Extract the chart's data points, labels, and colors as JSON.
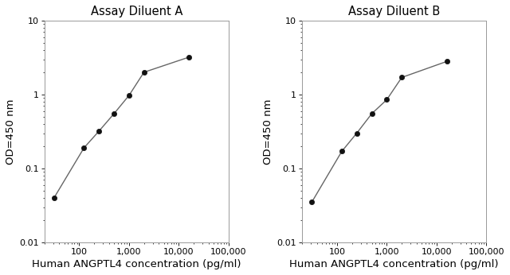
{
  "panel_A": {
    "title": "Assay Diluent A",
    "x": [
      31.25,
      125,
      250,
      500,
      1000,
      2000,
      16000
    ],
    "y": [
      0.04,
      0.19,
      0.32,
      0.55,
      0.97,
      2.0,
      3.2
    ]
  },
  "panel_B": {
    "title": "Assay Diluent B",
    "x": [
      31.25,
      125,
      250,
      500,
      1000,
      2000,
      16000
    ],
    "y": [
      0.035,
      0.17,
      0.3,
      0.55,
      0.85,
      1.7,
      2.8
    ]
  },
  "xlabel": "Human ANGPTL4 concentration (pg/ml)",
  "ylabel": "OD=450 nm",
  "xlim": [
    20,
    100000
  ],
  "ylim": [
    0.01,
    10
  ],
  "xticks": [
    100,
    1000,
    10000,
    100000
  ],
  "xtick_labels": [
    "100",
    "1,000",
    "10,000",
    "100,000"
  ],
  "yticks": [
    0.01,
    0.1,
    1,
    10
  ],
  "ytick_labels": [
    "0.01",
    "0.1",
    "1",
    "10"
  ],
  "line_color": "#666666",
  "marker_color": "#111111",
  "bg_color": "#ffffff",
  "title_fontsize": 10.5,
  "label_fontsize": 9.5,
  "tick_fontsize": 8
}
